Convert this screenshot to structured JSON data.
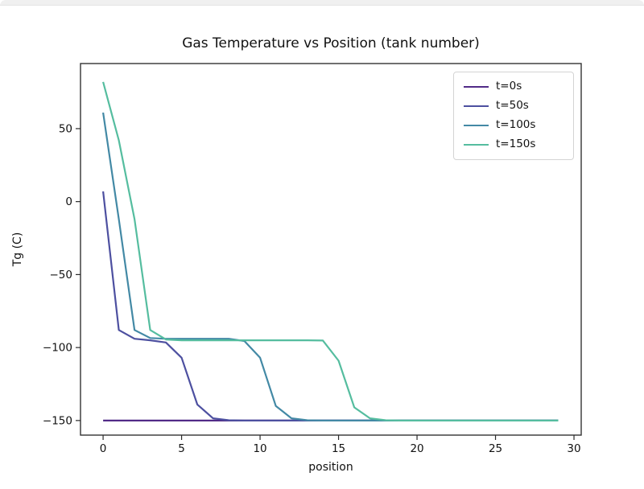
{
  "window": {
    "top_edge": true
  },
  "chart_data": {
    "type": "line",
    "title": "Gas Temperature vs Position (tank number)",
    "xlabel": "position",
    "ylabel": "Tg (C)",
    "xlim": [
      -1.44,
      30.46
    ],
    "ylim": [
      -160,
      94.6
    ],
    "grid": false,
    "legend_position": "upper right",
    "xticks": {
      "values": [
        0,
        5,
        10,
        15,
        20,
        25,
        30
      ],
      "labels": [
        "0",
        "5",
        "10",
        "15",
        "20",
        "25",
        "30"
      ]
    },
    "yticks": {
      "values": [
        50,
        0,
        -50,
        -100,
        -150
      ],
      "labels": [
        "50",
        "0",
        "−50",
        "−100",
        "−150"
      ]
    },
    "x": [
      0,
      1,
      2,
      3,
      4,
      5,
      6,
      7,
      8,
      9,
      10,
      11,
      12,
      13,
      14,
      15,
      16,
      17,
      18,
      19,
      20,
      21,
      22,
      23,
      24,
      25,
      26,
      27,
      28,
      29
    ],
    "series": [
      {
        "name": "t=0s",
        "color": "#512b87",
        "values": [
          -150,
          -150,
          -150,
          -150,
          -150,
          -150,
          -150,
          -150,
          -150,
          -150,
          -150,
          -150,
          -150,
          -150,
          -150,
          -150,
          -150,
          -150,
          -150,
          -150,
          -150,
          -150,
          -150,
          -150,
          -150,
          -150,
          -150,
          -150,
          -150,
          -150
        ]
      },
      {
        "name": "t=50s",
        "color": "#4d50a0",
        "values": [
          7,
          -88,
          -94,
          -95,
          -96.5,
          -107,
          -139,
          -148.5,
          -149.8,
          -150,
          -150,
          -150,
          -150,
          -150,
          -150,
          -150,
          -150,
          -150,
          -150,
          -150,
          -150,
          -150,
          -150,
          -150,
          -150,
          -150,
          -150,
          -150,
          -150,
          -150
        ]
      },
      {
        "name": "t=100s",
        "color": "#4389a5",
        "values": [
          61,
          -12,
          -88,
          -93.5,
          -94,
          -94,
          -94,
          -94,
          -94,
          -95.5,
          -107,
          -140,
          -148.5,
          -149.8,
          -150,
          -150,
          -150,
          -150,
          -150,
          -150,
          -150,
          -150,
          -150,
          -150,
          -150,
          -150,
          -150,
          -150,
          -150,
          -150
        ]
      },
      {
        "name": "t=150s",
        "color": "#55bd9f",
        "values": [
          82,
          42,
          -12,
          -88,
          -94.5,
          -95,
          -95,
          -95,
          -95,
          -95,
          -95,
          -95,
          -95,
          -95,
          -95.2,
          -109,
          -141,
          -148.5,
          -149.8,
          -150,
          -150,
          -150,
          -150,
          -150,
          -150,
          -150,
          -150,
          -150,
          -150,
          -150
        ]
      }
    ]
  }
}
